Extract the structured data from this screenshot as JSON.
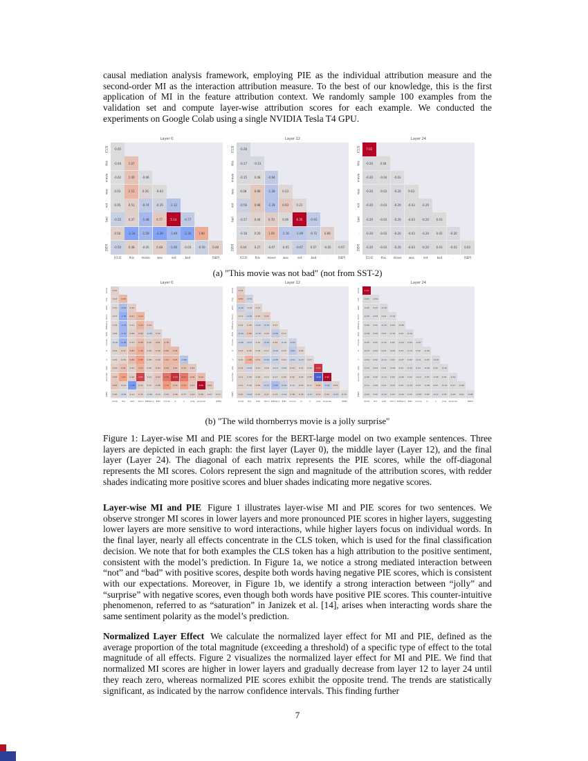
{
  "page": {
    "number": "7"
  },
  "paragraphs": {
    "p1": "causal mediation analysis framework, employing PIE as the individual attribution measure and the second-order MI as the interaction attribution measure. To the best of our knowledge, this is the first application of MI in the feature attribution context. We randomly sample 100 examples from the validation set and compute layer-wise attribution scores for each example. We conducted the experiments on Google Colab using a single NVIDIA Tesla T4 GPU."
  },
  "figure1": {
    "caption": "Figure 1: Layer-wise MI and PIE scores for the BERT-large model on two example sentences. Three layers are depicted in each graph: the first layer (Layer 0), the middle layer (Layer 12), and the final layer (Layer 24). The diagonal of each matrix represents the PIE scores, while the off-diagonal represents the MI scores. Colors represent the sign and magnitude of the attribution scores, with redder shades indicating more positive scores and bluer shades indicating more negative scores."
  },
  "sections": [
    {
      "heading": "Layer-wise MI and PIE",
      "body": "Figure 1 illustrates layer-wise MI and PIE scores for two sentences. We observe stronger MI scores in lower layers and more pronounced PIE scores in higher layers, suggesting lower layers are more sensitive to word interactions, while higher layers focus on individual words. In the final layer, nearly all effects concentrate in the CLS token, which is used for the final classification decision. We note that for both examples the CLS token has a high attribution to the positive sentiment, consistent with the model’s prediction. In Figure 1a, we notice a strong mediated interaction between “not” and “bad” with positive scores, despite both words having negative PIE scores, which is consistent with our expectations. Moreover, in Figure 1b, we identify a strong interaction between “jolly” and “surprise” with negative scores, even though both words have positive PIE scores. This counter-intuitive phenomenon, referred to as “saturation” in Janizek et al. [14], arises when interacting words share the same sentiment polarity as the model’s prediction."
    },
    {
      "heading": "Normalized Layer Effect",
      "body": "We calculate the normalized layer effect for MI and PIE, defined as the average proportion of the total magnitude (exceeding a threshold) of a specific type of effect to the total magnitude of all effects. Figure 2 visualizes the normalized layer effect for MI and PIE. We find that normalized MI scores are higher in lower layers and gradually decrease from layer 12 to layer 24 until they reach zero, whereas normalized PIE scores exhibit the opposite trend. The trends are statistically significant, as indicated by the narrow confidence intervals. This finding further"
    }
  ],
  "colors": {
    "heat_positive_max": "#b40426",
    "heat_negative_max": "#3b4cc0",
    "heat_mid": "#dcdcdc",
    "plot_background": "#e9e9f1",
    "artifact_red": "#b01226",
    "artifact_blue": "#2e3f96"
  },
  "chart_data": [
    {
      "type": "heatmap",
      "subfigure": "a",
      "caption": "(a) \"This movie was not bad\" (not from SST-2)",
      "tokens": [
        "[CLS]",
        "this",
        "movie",
        "was",
        "not",
        "bad",
        ".",
        "[SEP]"
      ],
      "panels": [
        {
          "title": "Layer 0",
          "rows": [
            [
              -0.05
            ],
            [
              -0.04,
              1.07
            ],
            [
              -0.02,
              1.0,
              -0.06
            ],
            [
              0.03,
              1.51,
              0.26,
              -0.03
            ],
            [
              0.05,
              0.51,
              -0.74,
              -0.35,
              -1.12
            ],
            [
              -0.55,
              0.37,
              -1.48,
              0.77,
              5.14,
              -0.77
            ],
            [
              0.5,
              -2.34,
              -1.59,
              -2.39,
              -1.49,
              -2.34,
              1.9
            ],
            [
              -0.5,
              0.48,
              -0.05,
              0.48,
              -1.0,
              -0.03,
              -0.5,
              0.48
            ]
          ]
        },
        {
          "title": "Layer 12",
          "rows": [
            [
              -0.28
            ],
            [
              -0.17,
              -0.23
            ],
            [
              -0.15,
              0.08,
              -0.94
            ],
            [
              0.08,
              0.98,
              -1.28,
              0.23
            ],
            [
              -0.56,
              0.98,
              -1.28,
              0.93,
              0.21
            ],
            [
              -0.17,
              0.44,
              0.7,
              0.06,
              6.35,
              -0.93
            ],
            [
              -0.18,
              0.2,
              1.59,
              -1.16,
              -1.09,
              -0.72,
              0.66
            ],
            [
              0.44,
              0.27,
              -0.07,
              -0.05,
              -0.67,
              0.07,
              -0.05,
              0.07
            ]
          ]
        },
        {
          "title": "Layer 24",
          "rows": [
            [
              7.02
            ],
            [
              -0.2,
              0.04
            ],
            [
              -0.2,
              -0.04,
              -0.03
            ],
            [
              -0.2,
              -0.03,
              -0.2,
              0.03
            ],
            [
              -0.2,
              -0.03,
              -0.2,
              -0.03,
              -0.2
            ],
            [
              -0.2,
              -0.03,
              -0.2,
              -0.03,
              -0.2,
              0.03
            ],
            [
              -0.2,
              -0.03,
              -0.2,
              -0.03,
              -0.2,
              0.03,
              -0.2
            ],
            [
              -0.2,
              -0.03,
              -0.2,
              -0.03,
              -0.2,
              0.03,
              -0.03,
              0.03
            ]
          ]
        }
      ]
    },
    {
      "type": "heatmap",
      "subfigure": "b",
      "caption": "(b) \"The wild thornberrys movie is a jolly surprise\"",
      "tokens": [
        "[CLS]",
        "the",
        "wild",
        "thorn",
        "##berry",
        "##s",
        "movie",
        "is",
        "a",
        "jolly",
        "surprise",
        ".",
        "[SEP]"
      ],
      "panels": [
        {
          "title": "Layer 0",
          "rows": [
            [
              0.31
            ],
            [
              0.22,
              0.98
            ],
            [
              0.1,
              -0.9,
              0.42
            ],
            [
              0.07,
              -1.36,
              0.67,
              1.1
            ],
            [
              0.19,
              -1.09,
              0.14,
              1.14,
              0.43
            ],
            [
              0.09,
              -1.12,
              0.38,
              0.62,
              -0.25,
              0.32
            ],
            [
              -0.16,
              -1.26,
              0.33,
              0.9,
              0.42,
              0.61,
              0.76
            ],
            [
              0.24,
              0.47,
              0.83,
              1.3,
              0.29,
              0.58,
              0.85,
              0.92
            ],
            [
              0.15,
              0.3,
              0.86,
              1.61,
              0.36,
              0.44,
              1.02,
              0.95,
              -0.68
            ],
            [
              0.43,
              0.81,
              0.39,
              1.15,
              0.25,
              0.53,
              0.94,
              0.81,
              0.72,
              0.51
            ],
            [
              0.55,
              1.67,
              0.46,
              2.87,
              0.23,
              0.62,
              2.25,
              3.1,
              2.21,
              0.9,
              0.94
            ],
            [
              0.62,
              0.24,
              -1.9,
              0.37,
              0.17,
              0.48,
              1.79,
              0.79,
              1.52,
              0.57,
              3.6,
              0.61
            ],
            [
              0.2,
              -0.16,
              0.12,
              0.31,
              -0.08,
              0.14,
              0.25,
              0.28,
              0.07,
              0.24,
              0.39,
              0.12,
              0.17
            ]
          ]
        },
        {
          "title": "Layer 12",
          "rows": [
            [
              0.41
            ],
            [
              0.84,
              -0.31
            ],
            [
              -0.41,
              -0.12,
              0.27
            ],
            [
              0.17,
              -0.35,
              0.33,
              0.52
            ],
            [
              0.19,
              0.3,
              -0.22,
              -0.31,
              0.21
            ],
            [
              -0.34,
              0.56,
              -0.18,
              0.24,
              -0.58,
              0.12
            ],
            [
              -0.26,
              -0.21,
              0.14,
              -0.44,
              0.28,
              -0.1,
              -0.34
            ],
            [
              0.23,
              0.39,
              0.18,
              0.17,
              -0.29,
              0.16,
              -0.61,
              0.24
            ],
            [
              0.19,
              1.28,
              0.51,
              -0.42,
              -0.38,
              0.14,
              -0.31,
              -0.27,
              0.07
            ],
            [
              0.37,
              -0.25,
              0.27,
              0.16,
              -0.13,
              -0.09,
              0.34,
              0.12,
              0.21,
              3.31
            ],
            [
              0.27,
              0.29,
              0.28,
              0.13,
              0.17,
              0.25,
              0.3,
              0.24,
              0.35,
              -3.52,
              3.94
            ],
            [
              0.31,
              0.16,
              0.32,
              -0.47,
              -1.02,
              -0.42,
              0.11,
              0.23,
              0.17,
              0.62,
              -0.49,
              0.29
            ],
            [
              0.3,
              -0.24,
              0.22,
              0.27,
              0.19,
              -0.14,
              0.36,
              0.18,
              -0.17,
              0.31,
              0.26,
              -0.23,
              0.15
            ]
          ]
        },
        {
          "title": "Layer 24",
          "rows": [
            [
              7.31
            ],
            [
              -0.21,
              -0.04
            ],
            [
              -0.05,
              0.03,
              -0.18
            ],
            [
              -0.2,
              -0.03,
              0.04,
              -0.12
            ],
            [
              -0.06,
              0.02,
              -0.15,
              0.03,
              -0.08
            ],
            [
              -0.18,
              -0.04,
              0.03,
              -0.1,
              0.02,
              -0.14
            ],
            [
              -0.05,
              0.03,
              -0.12,
              0.02,
              -0.16,
              0.03,
              -0.07
            ],
            [
              -0.15,
              -0.03,
              0.04,
              -0.09,
              0.03,
              -0.13,
              0.02,
              -0.05
            ],
            [
              -0.04,
              0.02,
              -0.14,
              0.03,
              -0.07,
              0.02,
              -0.11,
              0.03,
              -0.16
            ],
            [
              -0.12,
              -0.03,
              0.03,
              -0.08,
              0.02,
              -0.15,
              0.03,
              -0.06,
              0.02,
              -0.1
            ],
            [
              -0.05,
              0.02,
              -0.13,
              0.03,
              -0.09,
              0.02,
              -0.12,
              0.03,
              -0.05,
              0.02,
              -0.14
            ],
            [
              -0.11,
              -0.02,
              0.03,
              -0.07,
              0.02,
              -0.13,
              0.03,
              -0.08,
              0.02,
              -0.12,
              0.03,
              -0.06
            ],
            [
              -0.04,
              0.02,
              -0.1,
              0.03,
              -0.06,
              0.02,
              -0.09,
              0.02,
              -0.12,
              0.03,
              -0.05,
              0.02,
              -0.08
            ]
          ]
        }
      ]
    }
  ]
}
